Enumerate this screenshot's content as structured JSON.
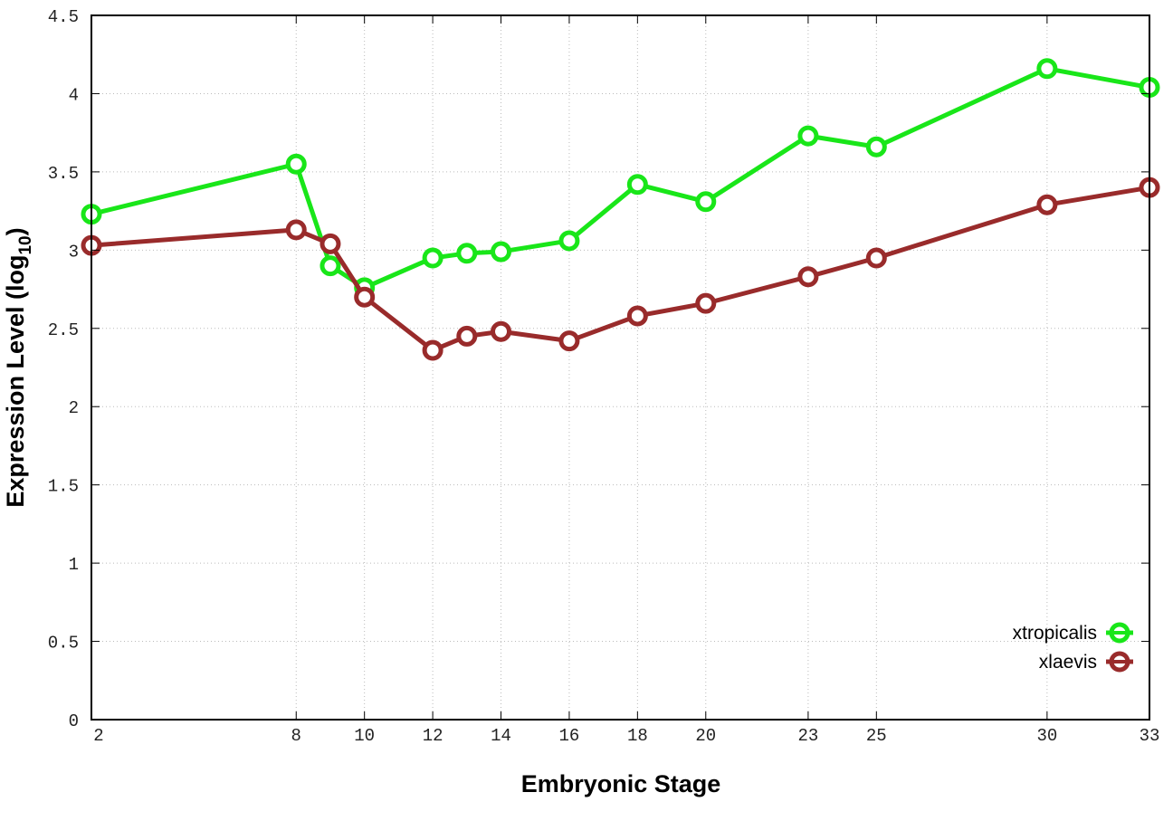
{
  "chart_data": {
    "type": "line",
    "xlabel": "Embryonic Stage",
    "ylabel": "Expression Level (log",
    "ylabel_subscript": "10",
    "ylabel_close": ")",
    "x": [
      2,
      8,
      9,
      10,
      12,
      13,
      14,
      16,
      18,
      20,
      23,
      25,
      30,
      33
    ],
    "x_tick_labels": [
      "2",
      "8",
      "10",
      "12",
      "14",
      "16",
      "18",
      "20",
      "23",
      "25",
      "30",
      "33"
    ],
    "x_ticks": [
      2,
      8,
      10,
      12,
      14,
      16,
      18,
      20,
      23,
      25,
      30,
      33
    ],
    "xlim": [
      2,
      33
    ],
    "ylim": [
      0,
      4.5
    ],
    "y_ticks": [
      0,
      0.5,
      1,
      1.5,
      2,
      2.5,
      3,
      3.5,
      4,
      4.5
    ],
    "y_tick_labels": [
      "0",
      "0.5",
      "1",
      "1.5",
      "2",
      "2.5",
      "3",
      "3.5",
      "4",
      "4.5"
    ],
    "grid": true,
    "legend_placement": "bottom-right",
    "series": [
      {
        "name": "xtropicalis",
        "color": "#19e619",
        "values": [
          3.23,
          3.55,
          2.9,
          2.76,
          2.95,
          2.98,
          2.99,
          3.06,
          3.42,
          3.31,
          3.73,
          3.66,
          4.16,
          4.04
        ]
      },
      {
        "name": "xlaevis",
        "color": "#992b2b",
        "values": [
          3.03,
          3.13,
          3.04,
          2.7,
          2.36,
          2.45,
          2.48,
          2.42,
          2.58,
          2.66,
          2.83,
          2.95,
          3.29,
          3.4
        ]
      }
    ]
  }
}
